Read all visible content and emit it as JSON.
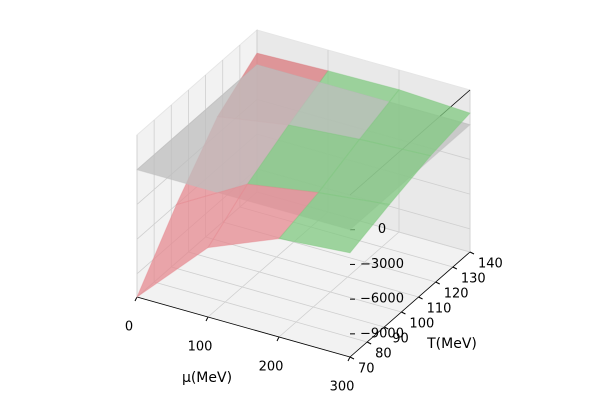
{
  "chart_data": {
    "type": "surface3d",
    "xlabel": "μ(MeV)",
    "ylabel": "T(MeV)",
    "xlim": [
      0,
      300
    ],
    "ylim": [
      70,
      140
    ],
    "zlim": [
      -11000,
      3000
    ],
    "xticks": [
      0,
      100,
      200,
      300
    ],
    "yticks": [
      70,
      80,
      90,
      100,
      110,
      120,
      130,
      140
    ],
    "zticks": [
      {
        "value": -9000,
        "label": "−9000"
      },
      {
        "value": -6000,
        "label": "−6000"
      },
      {
        "value": -3000,
        "label": "−3000"
      },
      0
    ],
    "grid": true,
    "surfaces": [
      {
        "color": "#bdbdbd",
        "x": [
          0,
          300
        ],
        "y": [
          70,
          140
        ],
        "z": [
          [
            0,
            0
          ],
          [
            0,
            0
          ]
        ]
      },
      {
        "colors": [
          [
            "#e58a90",
            "#e58a90",
            "#80c880"
          ],
          [
            "#e58a90",
            "#80c880",
            "#80c880"
          ],
          [
            "#d9787c",
            "#80c880",
            "#80c880"
          ]
        ],
        "x": [
          0,
          100,
          200,
          300
        ],
        "y": [
          70,
          93,
          117,
          140
        ],
        "z": [
          [
            -11000,
            -5000,
            -2500,
            -2000
          ],
          [
            -6000,
            -2500,
            -1500,
            -800
          ],
          [
            -1500,
            -500,
            0,
            300
          ],
          [
            1000,
            1200,
            1300,
            1000
          ]
        ]
      }
    ]
  }
}
